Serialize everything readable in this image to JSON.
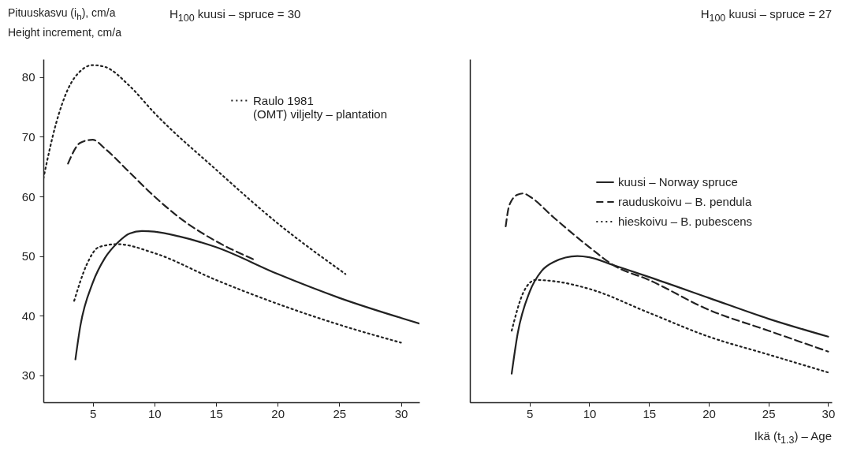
{
  "chart_data": [
    {
      "type": "line",
      "title": "H$_{100}$ kuusi – spruce = 30",
      "ylabel": "Pituuskasvu (i$_{h}$), cm/a\nHeight increment, cm/a",
      "xlim": [
        1,
        31.5
      ],
      "xticks": [
        5,
        10,
        15,
        20,
        25,
        30
      ],
      "ylim": [
        25.5,
        83
      ],
      "yticks": [
        30,
        40,
        50,
        60,
        70,
        80
      ],
      "grid": false,
      "legend": "top right",
      "series": [
        {
          "color": "#222222",
          "line_style": "solid",
          "x": [
            3.6,
            4,
            5,
            6,
            7,
            8,
            9,
            10,
            12,
            15,
            20,
            25,
            31.5
          ],
          "values": [
            32.7,
            38.3,
            45.5,
            49.7,
            52.2,
            53.8,
            54.2,
            54.1,
            53.3,
            51.5,
            47,
            43,
            38.7
          ]
        },
        {
          "color": "#222222",
          "line_style": "dashed",
          "x": [
            3,
            4,
            5,
            6,
            8,
            10,
            12,
            15,
            18
          ],
          "values": [
            65.5,
            69,
            69.5,
            68,
            64,
            60,
            56.5,
            52.5,
            49.5
          ]
        },
        {
          "color": "#222222",
          "line_style": "dotted",
          "x": [
            3.5,
            4.5,
            5.5,
            7,
            10,
            15,
            20,
            25,
            30
          ],
          "values": [
            42.5,
            48.5,
            51.5,
            52,
            50.5,
            46,
            42,
            38.5,
            35.5
          ]
        },
        {
          "name": "Raulo 1981\n(OMT) viljelty – plantation",
          "color": "#222222",
          "line_style": "dotted",
          "x": [
            1,
            2,
            3,
            4,
            5,
            6,
            8,
            10,
            15,
            20,
            25.5
          ],
          "values": [
            63,
            72,
            78,
            81,
            82,
            81.7,
            78.5,
            74,
            64.5,
            55.5,
            47
          ]
        }
      ]
    },
    {
      "type": "line",
      "title": "H$_{100}$ kuusi – spruce = 27",
      "xlabel": "Ikä (t$_{1.3}$) – Age",
      "xlim": [
        0,
        30.3
      ],
      "xticks": [
        5,
        10,
        15,
        20,
        25,
        30
      ],
      "ylim": [
        25.5,
        83
      ],
      "tick_labels": "x",
      "grid": false,
      "legend": "right",
      "series": [
        {
          "name": "kuusi – Norway spruce",
          "color": "#222222",
          "line_style": "solid",
          "x": [
            3.5,
            4,
            5,
            6,
            7,
            9,
            10,
            12,
            15,
            20,
            25,
            30
          ],
          "values": [
            30.3,
            37,
            44,
            47.5,
            49,
            50,
            49.8,
            48.5,
            46.5,
            43,
            39.5,
            36.5
          ]
        },
        {
          "name": "rauduskoivu – B. pendula",
          "color": "#222222",
          "line_style": "dashed",
          "x": [
            3,
            3.3,
            4,
            4.5,
            5,
            7,
            10,
            12,
            15,
            20,
            25,
            30
          ],
          "values": [
            55,
            58.5,
            60.3,
            60.5,
            60,
            56.5,
            51.5,
            48.5,
            46,
            41,
            37.5,
            34
          ]
        },
        {
          "name": "hieskoivu – B. pubescens",
          "color": "#222222",
          "line_style": "dotted",
          "x": [
            3.5,
            4.5,
            5.5,
            7,
            10,
            15,
            20,
            25,
            30
          ],
          "values": [
            37.5,
            44,
            46,
            45.8,
            44.5,
            40.5,
            36.5,
            33.5,
            30.5
          ]
        }
      ]
    }
  ]
}
